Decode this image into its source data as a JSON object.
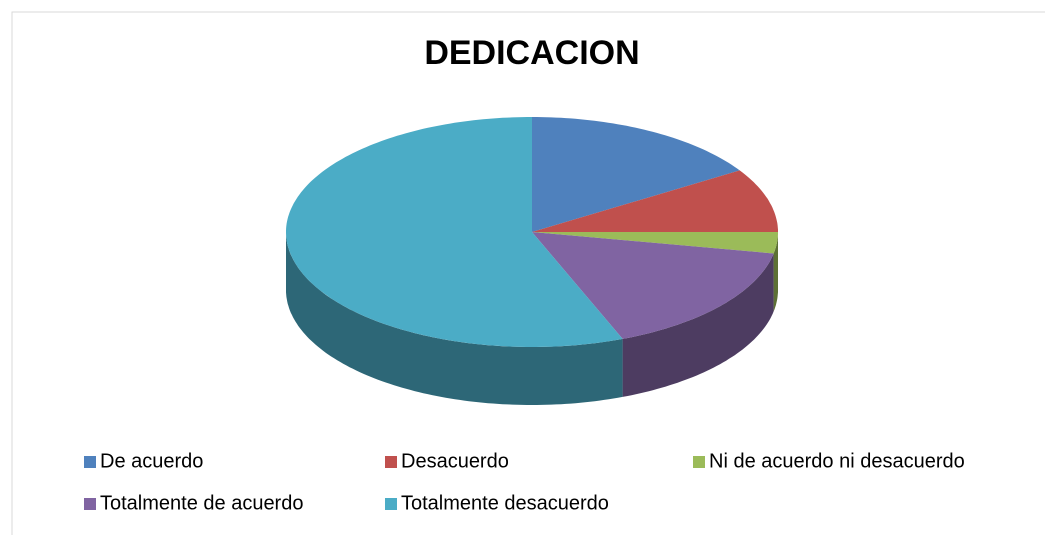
{
  "chart_data": {
    "type": "pie",
    "title": "DEDICACION",
    "categories": [
      "De acuerdo",
      "Desacuerdo",
      "Ni de acuerdo ni desacuerdo",
      "Totalmente de acuerdo",
      "Totalmente desacuerdo"
    ],
    "values": [
      16,
      9,
      3,
      16,
      56
    ],
    "colors": [
      "#4f81bd",
      "#c0504d",
      "#9bbb59",
      "#8064a2",
      "#4bacc6"
    ],
    "legend": "bottom"
  }
}
